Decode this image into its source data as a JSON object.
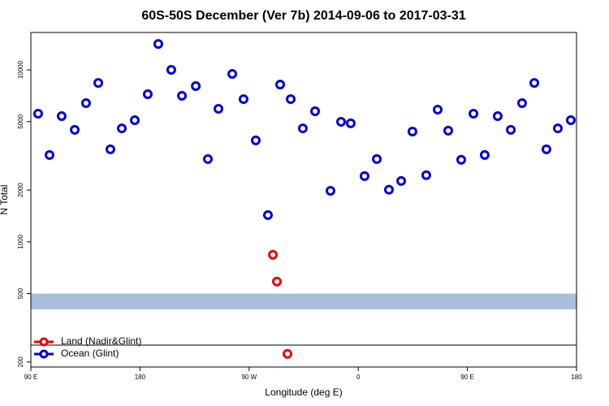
{
  "chart_data": {
    "type": "scatter",
    "title": "60S-50S December (Ver 7b)   2014-09-06 to 2017-03-31",
    "x_label": "Longitude (deg E)",
    "y_label": "N Total",
    "xlim": [
      90,
      540
    ],
    "xticks": [
      {
        "value": 90,
        "label": "90 E"
      },
      180,
      {
        "value": 270,
        "label": "90 W"
      },
      {
        "value": 360,
        "label": "0"
      },
      {
        "value": 450,
        "label": "90 E"
      },
      {
        "value": 540,
        "label": "180"
      }
    ],
    "ylim": [
      187,
      16500
    ],
    "yticks": [
      200,
      500,
      1000,
      2000,
      5000,
      10000
    ],
    "y_log": true,
    "band": {
      "color": "#a8bedc",
      "range": [
        405,
        500
      ]
    },
    "legend": "bottom-left",
    "series": [
      {
        "name": "Land (Nadir&Glint)",
        "color": "#ee0000",
        "x": [
          289.6,
          292.9,
          301.6
        ],
        "values": [
          841,
          587,
          223
        ]
      },
      {
        "name": "Ocean (Glint)",
        "color": "#0000dd",
        "x": [
          96,
          105.4,
          115.4,
          126.2,
          135.5,
          145.6,
          155.6,
          165,
          175.7,
          186.4,
          195.1,
          205.8,
          214.6,
          226,
          236,
          244.7,
          256.1,
          265.4,
          275.5,
          285.5,
          295.6,
          304.3,
          314.3,
          324.4,
          337.1,
          345.8,
          353.8,
          365.2,
          375.3,
          385.3,
          395.4,
          404.7,
          416.1,
          425.5,
          434.2,
          444.9,
          455,
          464.3,
          475,
          485.8,
          495.1,
          505.2,
          515.2,
          524.6,
          535.3
        ],
        "values": [
          5560,
          3200,
          5380,
          4480,
          6410,
          8400,
          3450,
          4570,
          5100,
          7220,
          14150,
          10000,
          7070,
          8050,
          3030,
          5940,
          9470,
          6760,
          3890,
          1430,
          8220,
          6760,
          4570,
          5750,
          1980,
          4990,
          4890,
          2410,
          3030,
          2010,
          2260,
          4380,
          2440,
          5870,
          4430,
          3000,
          5560,
          3200,
          5380,
          4480,
          6410,
          8400,
          3450,
          4570,
          5100
        ]
      }
    ]
  }
}
